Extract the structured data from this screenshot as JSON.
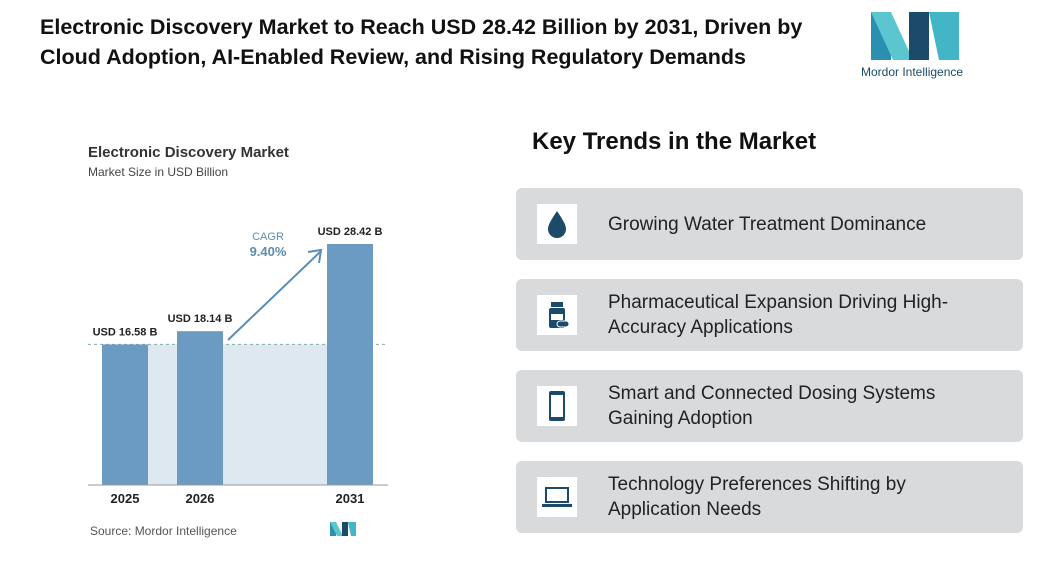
{
  "header": {
    "title": "Electronic Discovery Market to Reach USD 28.42 Billion by 2031, Driven by Cloud Adoption, AI-Enabled Review, and Rising Regulatory Demands"
  },
  "logo": {
    "text": "Mordor Intelligence"
  },
  "chart_data": {
    "type": "bar",
    "title": "Electronic Discovery Market",
    "subtitle": "Market Size in USD Billion",
    "categories": [
      "2025",
      "2026",
      "2031"
    ],
    "values": [
      16.58,
      18.14,
      28.42
    ],
    "value_labels": [
      "USD 16.58 B",
      "USD 18.14 B",
      "USD 28.42 B"
    ],
    "color": "#6b9bc3",
    "annotation": {
      "label": "CAGR",
      "value": "9.40%"
    },
    "source": "Source: Mordor Intelligence"
  },
  "trends": {
    "title": "Key Trends in the Market",
    "items": [
      "Growing Water Treatment Dominance",
      "Pharmaceutical Expansion Driving High-Accuracy Applications",
      "Smart and Connected Dosing Systems Gaining Adoption",
      "Technology Preferences Shifting by Application Needs"
    ]
  }
}
